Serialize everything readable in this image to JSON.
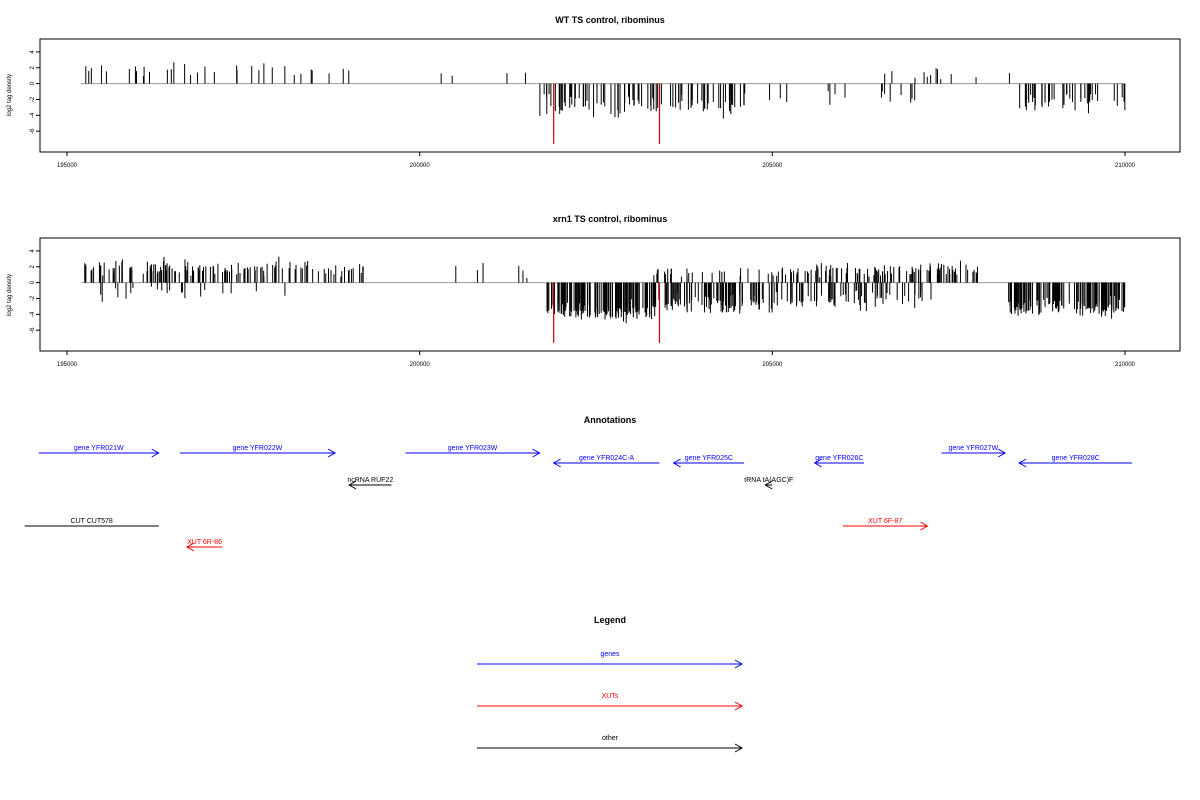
{
  "colors": {
    "gene": "#0000ff",
    "xut": "#ff0000",
    "other": "#000000",
    "bar": "#000000",
    "highlight": "#cc0000",
    "axis": "#000000",
    "baseline": "#999999"
  },
  "chart_data": [
    {
      "type": "bar",
      "title": "WT TS control, ribominus",
      "ylabel": "log2 tag density",
      "xlim": [
        195000,
        210000
      ],
      "ylim": [
        -8,
        5
      ],
      "x_ticks": [
        195000,
        200000,
        205000,
        210000
      ],
      "y_ticks": [
        4,
        2,
        0,
        -2,
        -4,
        -6
      ],
      "highlight_positions": [
        201900,
        203400
      ],
      "regions": [
        {
          "start": 195200,
          "end": 196300,
          "sign": 1,
          "density": 0.1,
          "mean": 1.8,
          "spread": 0.9,
          "max": 3.2
        },
        {
          "start": 196400,
          "end": 197200,
          "sign": 1,
          "density": 0.1,
          "mean": 1.9,
          "spread": 0.9,
          "max": 3.1
        },
        {
          "start": 197300,
          "end": 199000,
          "sign": 1,
          "density": 0.08,
          "mean": 1.8,
          "spread": 0.9,
          "max": 4.0
        },
        {
          "start": 200100,
          "end": 201500,
          "sign": 1,
          "density": 0.03,
          "mean": 1.2,
          "spread": 0.6,
          "max": 2.8
        },
        {
          "start": 201700,
          "end": 204600,
          "sign": -1,
          "density": 0.32,
          "mean": 2.8,
          "spread": 1.2,
          "max": 5.2
        },
        {
          "start": 204600,
          "end": 207200,
          "sign": -1,
          "density": 0.06,
          "mean": 1.7,
          "spread": 0.8,
          "max": 3.2
        },
        {
          "start": 205500,
          "end": 208600,
          "sign": 1,
          "density": 0.04,
          "mean": 1.3,
          "spread": 0.6,
          "max": 2.8
        },
        {
          "start": 208500,
          "end": 210000,
          "sign": -1,
          "density": 0.3,
          "mean": 2.3,
          "spread": 1.0,
          "max": 4.8
        }
      ]
    },
    {
      "type": "bar",
      "title": "xrn1 TS control, ribominus",
      "ylabel": "log2 tag density",
      "xlim": [
        195000,
        210000
      ],
      "ylim": [
        -8,
        5
      ],
      "x_ticks": [
        195000,
        200000,
        205000,
        210000
      ],
      "y_ticks": [
        4,
        2,
        0,
        -2,
        -4,
        -6
      ],
      "highlight_positions": [
        201900,
        203400
      ],
      "regions": [
        {
          "start": 195200,
          "end": 199200,
          "sign": 1,
          "density": 0.35,
          "mean": 2.0,
          "spread": 0.9,
          "max": 5.2
        },
        {
          "start": 195300,
          "end": 198800,
          "sign": -1,
          "density": 0.06,
          "mean": 1.2,
          "spread": 0.8,
          "max": 4.4
        },
        {
          "start": 200500,
          "end": 201700,
          "sign": 1,
          "density": 0.05,
          "mean": 1.5,
          "spread": 0.8,
          "max": 3.5
        },
        {
          "start": 201800,
          "end": 203300,
          "sign": -1,
          "density": 0.8,
          "mean": 3.6,
          "spread": 1.0,
          "max": 6.0
        },
        {
          "start": 203300,
          "end": 205000,
          "sign": -1,
          "density": 0.55,
          "mean": 2.8,
          "spread": 1.0,
          "max": 5.6
        },
        {
          "start": 203300,
          "end": 205000,
          "sign": 1,
          "density": 0.15,
          "mean": 1.4,
          "spread": 0.6,
          "max": 2.8
        },
        {
          "start": 205000,
          "end": 208000,
          "sign": 1,
          "density": 0.35,
          "mean": 1.6,
          "spread": 0.8,
          "max": 3.4
        },
        {
          "start": 205000,
          "end": 207300,
          "sign": -1,
          "density": 0.3,
          "mean": 2.3,
          "spread": 0.9,
          "max": 5.0
        },
        {
          "start": 208300,
          "end": 210000,
          "sign": -1,
          "density": 0.8,
          "mean": 3.0,
          "spread": 1.0,
          "max": 7.4
        }
      ]
    }
  ],
  "annotations": {
    "title": "Annotations",
    "items": [
      {
        "label": "gene YFR021W",
        "kind": "gene",
        "dir": "right",
        "start": 194600,
        "end": 196300,
        "row": 0
      },
      {
        "label": "gene YFR022W",
        "kind": "gene",
        "dir": "right",
        "start": 196600,
        "end": 198800,
        "row": 0
      },
      {
        "label": "gene YFR023W",
        "kind": "gene",
        "dir": "right",
        "start": 199800,
        "end": 201700,
        "row": 0
      },
      {
        "label": "gene YFR024C-A",
        "kind": "gene",
        "dir": "left",
        "start": 201900,
        "end": 203400,
        "row": 1
      },
      {
        "label": "gene YFR025C",
        "kind": "gene",
        "dir": "left",
        "start": 203600,
        "end": 204600,
        "row": 1
      },
      {
        "label": "gene YFR026C",
        "kind": "gene",
        "dir": "left",
        "start": 205600,
        "end": 206300,
        "row": 1
      },
      {
        "label": "gene YFR027W",
        "kind": "gene",
        "dir": "right",
        "start": 207400,
        "end": 208300,
        "row": 0
      },
      {
        "label": "gene YFR028C",
        "kind": "gene",
        "dir": "left",
        "start": 208500,
        "end": 210100,
        "row": 1
      },
      {
        "label": "ncRNA RUF22",
        "kind": "other",
        "dir": "left",
        "start": 199000,
        "end": 199600,
        "row": 2
      },
      {
        "label": "tRNA tA(AGC)F",
        "kind": "other",
        "dir": "left",
        "start": 204900,
        "end": 205000,
        "row": 2
      },
      {
        "label": "CUT CUT578",
        "kind": "other",
        "dir": "none",
        "start": 194400,
        "end": 196300,
        "row": 3
      },
      {
        "label": "XUT 6R-86",
        "kind": "xut",
        "dir": "left",
        "start": 196700,
        "end": 197200,
        "row": 4
      },
      {
        "label": "XUT 6F-87",
        "kind": "xut",
        "dir": "right",
        "start": 206000,
        "end": 207200,
        "row": 3
      }
    ]
  },
  "legend": {
    "title": "Legend",
    "items": [
      {
        "label": "genes",
        "kind": "gene"
      },
      {
        "label": "XUTs",
        "kind": "xut"
      },
      {
        "label": "other",
        "kind": "other"
      }
    ]
  }
}
